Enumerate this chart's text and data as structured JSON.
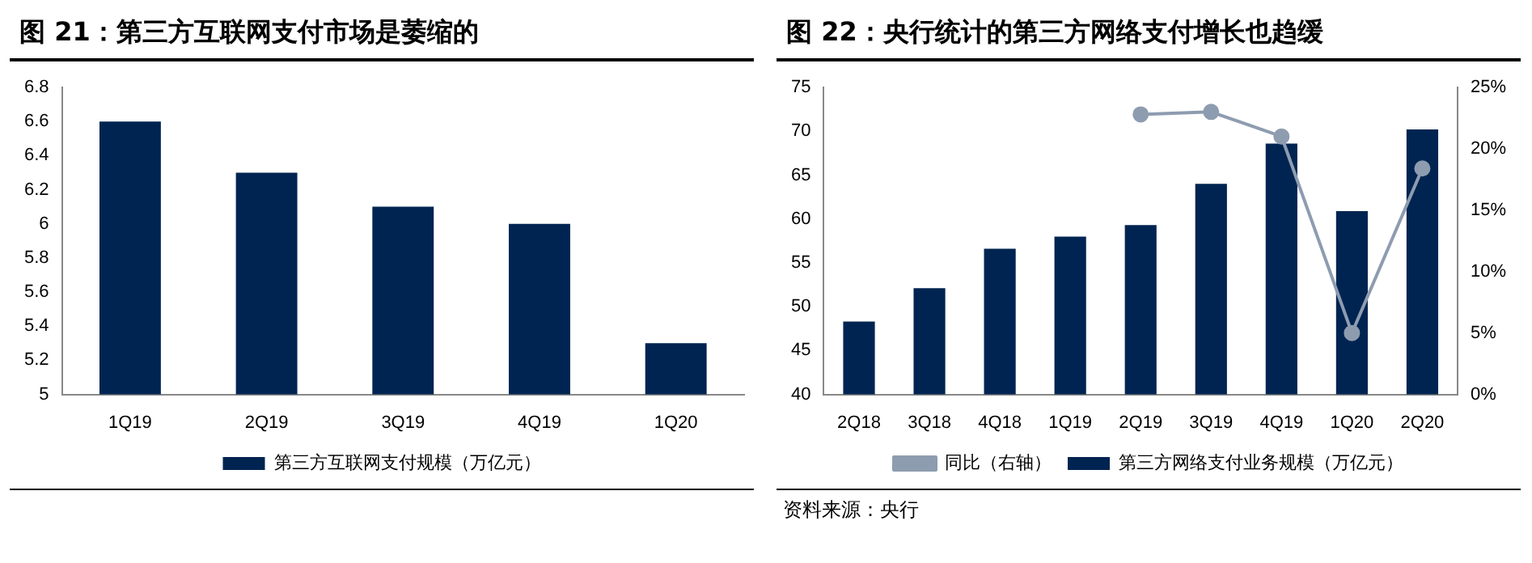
{
  "chart_data": [
    {
      "type": "bar",
      "title": "图 21：第三方互联网支付市场是萎缩的",
      "categories": [
        "1Q19",
        "2Q19",
        "3Q19",
        "4Q19",
        "1Q20"
      ],
      "series": [
        {
          "name": "第三方互联网支付规模（万亿元）",
          "color": "#002451",
          "values": [
            6.6,
            6.3,
            6.1,
            6.0,
            5.3
          ]
        }
      ],
      "ylim": [
        5,
        6.8
      ],
      "yticks": [
        5,
        5.2,
        5.4,
        5.6,
        5.8,
        6,
        6.2,
        6.4,
        6.6,
        6.8
      ],
      "grid": false,
      "legend": "bottom"
    },
    {
      "type": "bar",
      "title": "图 22：央行统计的第三方网络支付增长也趋缓",
      "categories": [
        "2Q18",
        "3Q18",
        "4Q18",
        "1Q19",
        "2Q19",
        "3Q19",
        "4Q19",
        "1Q20",
        "2Q20"
      ],
      "series": [
        {
          "name": "第三方网络支付业务规模（万亿元）",
          "color": "#002451",
          "values": [
            48.3,
            52.1,
            56.6,
            58.0,
            59.3,
            64.0,
            68.6,
            60.9,
            70.2
          ]
        },
        {
          "name": "同比（右轴）",
          "type": "line",
          "axis": "y2",
          "color": "#8e9cb0",
          "marker": "circle",
          "values": [
            null,
            null,
            null,
            null,
            22.8,
            23.0,
            21.0,
            5.0,
            18.4
          ]
        }
      ],
      "ylim": [
        40,
        75
      ],
      "yticks": [
        40,
        45,
        50,
        55,
        60,
        65,
        70,
        75
      ],
      "y2lim": [
        0,
        25
      ],
      "y2ticks": [
        {
          "value": 0,
          "label": "0%"
        },
        {
          "value": 5,
          "label": "5%"
        },
        {
          "value": 10,
          "label": "10%"
        },
        {
          "value": 15,
          "label": "15%"
        },
        {
          "value": 20,
          "label": "20%"
        },
        {
          "value": 25,
          "label": "25%"
        }
      ],
      "grid": false,
      "legend": "bottom",
      "annotations": [
        "资料来源：央行"
      ]
    }
  ]
}
